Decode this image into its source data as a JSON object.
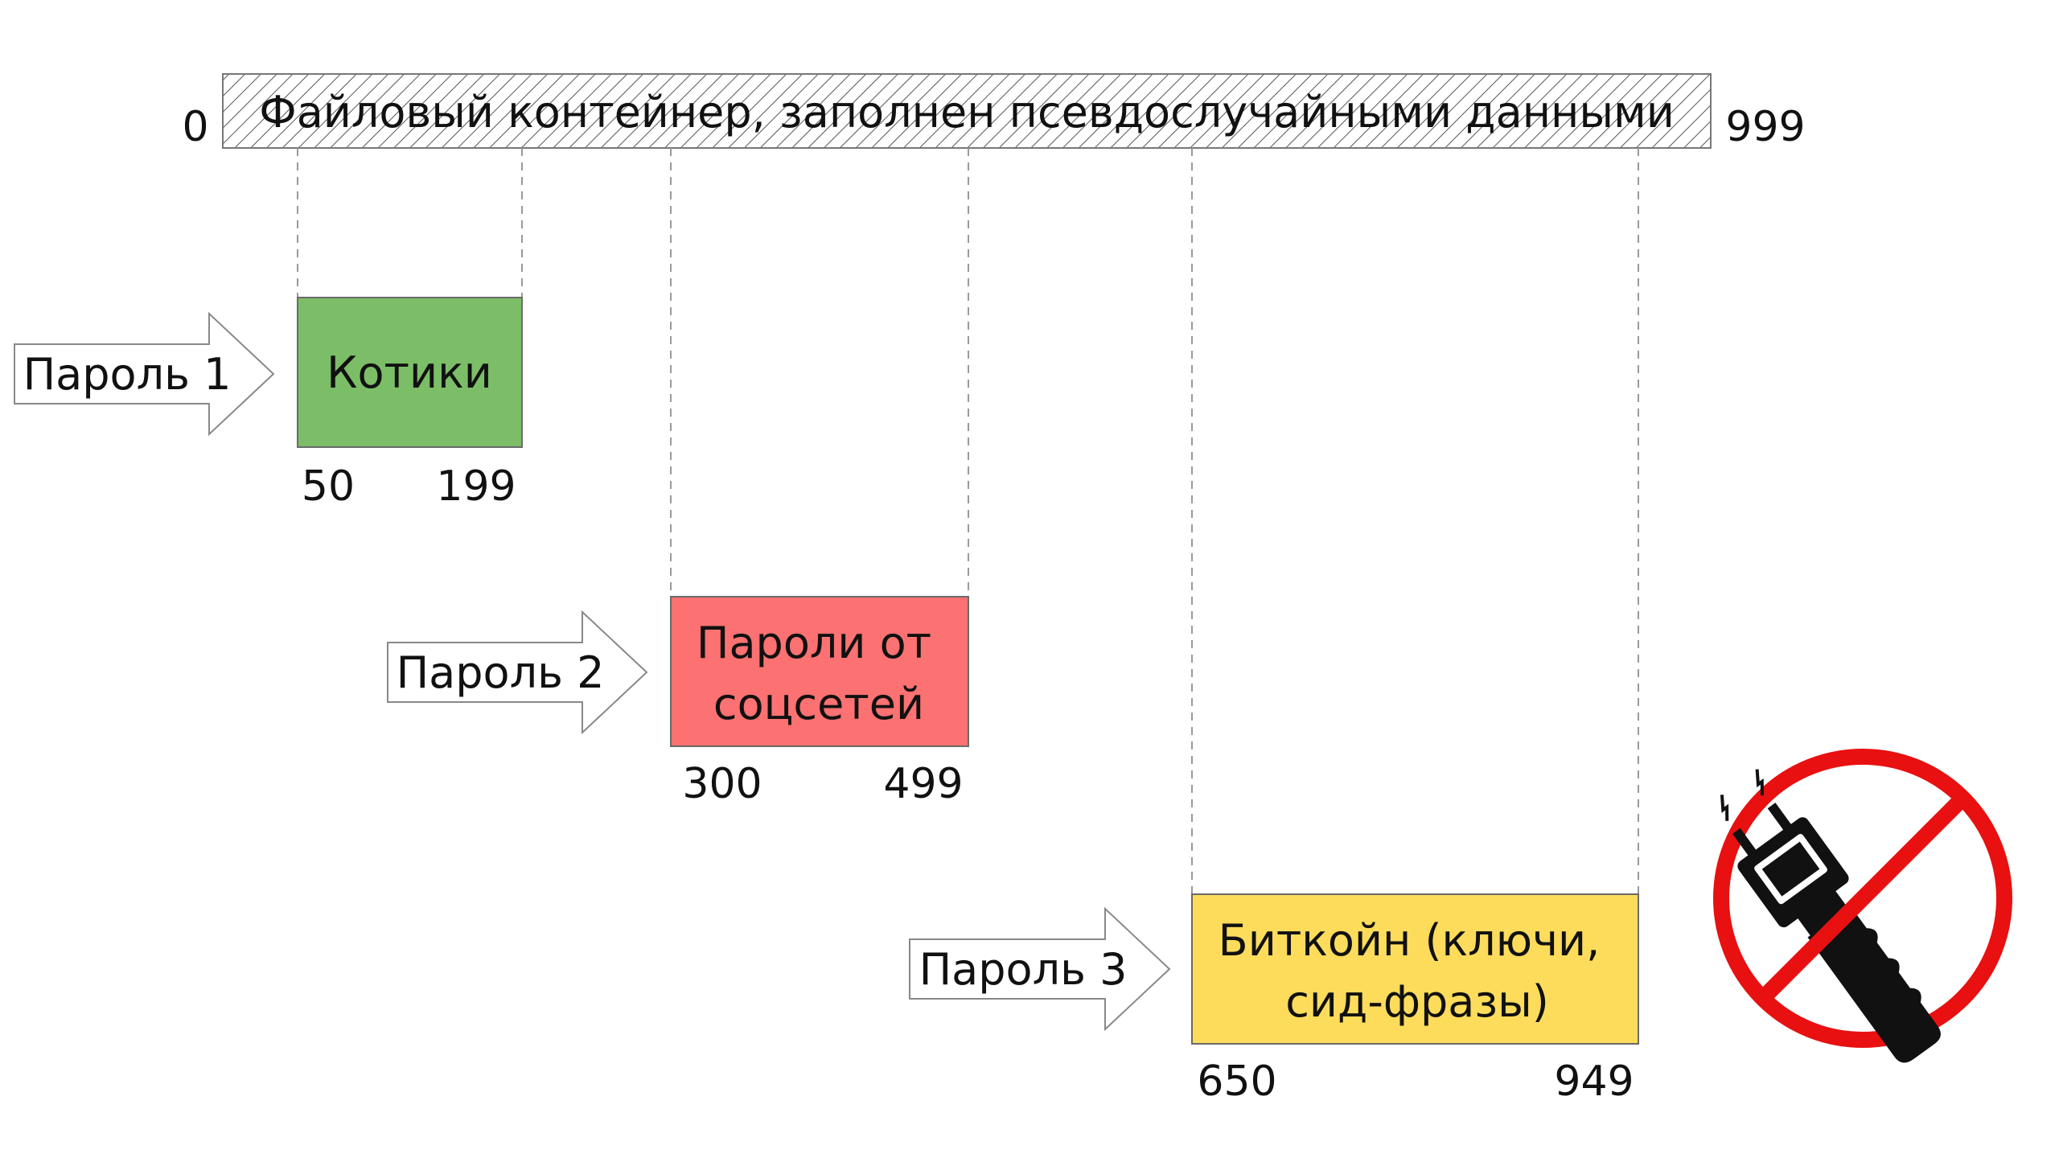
{
  "container": {
    "label": "Файловый контейнер, заполнен псевдослучайными данными",
    "start": "0",
    "end": "999",
    "pattern": "diagonal-hatch"
  },
  "segments": [
    {
      "password_label": "Пароль 1",
      "lines": [
        "Котики"
      ],
      "start": "50",
      "end": "199",
      "color": "#7BBE67"
    },
    {
      "password_label": "Пароль 2",
      "lines": [
        "Пароли от",
        "соцсетей"
      ],
      "start": "300",
      "end": "499",
      "color": "#FC7171"
    },
    {
      "password_label": "Пароль 3",
      "lines": [
        "Биткойн (ключи,",
        "сид-фразы)"
      ],
      "start": "650",
      "end": "949",
      "color": "#FDDC5C"
    }
  ],
  "no_torture_sign": {
    "icon": "no-stun-gun-icon",
    "ring_color": "#E81010"
  }
}
